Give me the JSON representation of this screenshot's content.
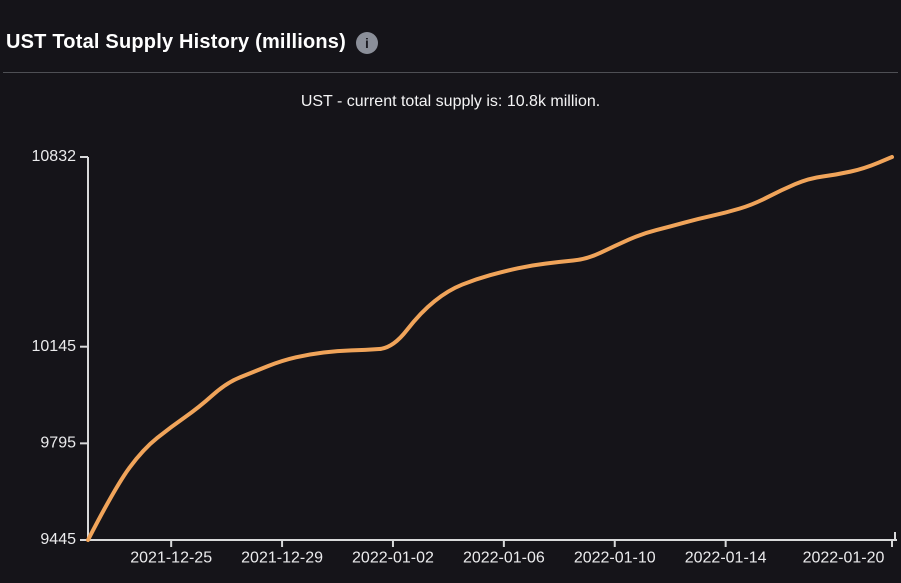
{
  "header": {
    "title": "UST Total Supply History (millions)",
    "info_glyph": "i"
  },
  "subtitle": "UST - current total supply is: 10.8k million.",
  "colors": {
    "background": "#151419",
    "line": "#f0a45a",
    "axis": "#d8d9da",
    "tick_label": "#ebebed",
    "divider": "#4e4f54",
    "info_icon_bg": "#8b8f99"
  },
  "chart_data": {
    "type": "line",
    "title": "UST Total Supply History (millions)",
    "xlabel": "",
    "ylabel": "",
    "grid": false,
    "legend": "none",
    "x": [
      "2021-12-22",
      "2021-12-23",
      "2021-12-24",
      "2021-12-25",
      "2021-12-26",
      "2021-12-27",
      "2021-12-28",
      "2021-12-29",
      "2021-12-30",
      "2021-12-31",
      "2022-01-01",
      "2022-01-02",
      "2022-01-03",
      "2022-01-04",
      "2022-01-05",
      "2022-01-06",
      "2022-01-07",
      "2022-01-08",
      "2022-01-09",
      "2022-01-10",
      "2022-01-11",
      "2022-01-12",
      "2022-01-13",
      "2022-01-14",
      "2022-01-15",
      "2022-01-16",
      "2022-01-17",
      "2022-01-18",
      "2022-01-19",
      "2022-01-20"
    ],
    "values": [
      9445,
      9640,
      9775,
      9855,
      9925,
      10015,
      10055,
      10095,
      10118,
      10130,
      10133,
      10140,
      10270,
      10350,
      10390,
      10418,
      10440,
      10452,
      10462,
      10510,
      10555,
      10580,
      10608,
      10630,
      10660,
      10712,
      10755,
      10768,
      10790,
      10832
    ],
    "x_tick_labels": [
      "2021-12-25",
      "2021-12-29",
      "2022-01-02",
      "2022-01-06",
      "2022-01-10",
      "2022-01-14",
      "2022-01-20"
    ],
    "x_tick_indices": [
      3,
      7,
      11,
      15,
      19,
      23,
      29
    ],
    "y_ticks": [
      9445,
      9795,
      10145,
      10832
    ],
    "ylim": [
      9445,
      10832
    ],
    "line_color": "#f0a45a"
  }
}
